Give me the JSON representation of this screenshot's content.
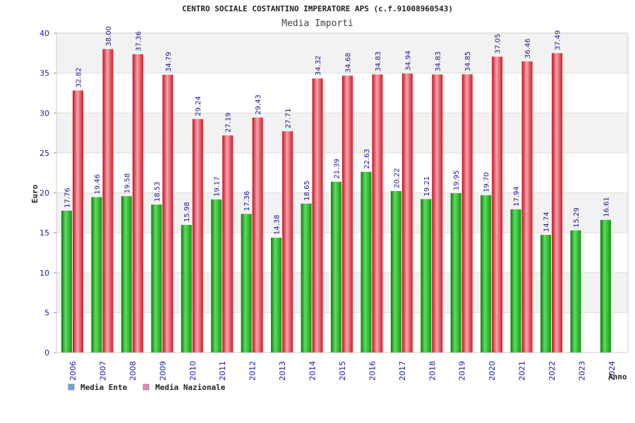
{
  "chart_data": {
    "type": "bar",
    "title": "CENTRO SOCIALE COSTANTINO IMPERATORE APS (c.f.91008960543)",
    "subtitle": "Media Importi",
    "xlabel": "Anno",
    "ylabel": "Euro",
    "ylim": [
      0,
      40
    ],
    "yticks": [
      0,
      5,
      10,
      15,
      20,
      25,
      30,
      35,
      40
    ],
    "grid": true,
    "legend_position": "bottom-left",
    "categories": [
      "2006",
      "2007",
      "2008",
      "2009",
      "2010",
      "2011",
      "2012",
      "2013",
      "2014",
      "2015",
      "2016",
      "2017",
      "2018",
      "2019",
      "2020",
      "2021",
      "2022",
      "2023",
      "2024"
    ],
    "series": [
      {
        "name": "Media Ente",
        "color": "#1faa1f",
        "legend_color": "#6aa6e8",
        "values": [
          17.76,
          19.46,
          19.58,
          18.53,
          15.98,
          19.17,
          17.36,
          14.38,
          18.65,
          21.39,
          22.63,
          20.22,
          19.21,
          19.95,
          19.7,
          17.94,
          14.74,
          15.29,
          16.61
        ],
        "labels": [
          "17.76",
          "19.46",
          "19.58",
          "18.53",
          "15.98",
          "19.17",
          "17.36",
          "14.38",
          "18.65",
          "21.39",
          "22.63",
          "20.22",
          "19.21",
          "19.95",
          "19.70",
          "17.94",
          "14.74",
          "15.29",
          "16.61"
        ]
      },
      {
        "name": "Media Nazionale",
        "color": "#e8202a",
        "legend_color": "#e88ab8",
        "values": [
          32.82,
          38.0,
          37.36,
          34.79,
          29.24,
          27.19,
          29.43,
          27.71,
          34.32,
          34.68,
          34.83,
          34.94,
          34.83,
          34.85,
          37.05,
          36.46,
          37.49,
          null,
          null
        ],
        "labels": [
          "32.82",
          "38.00",
          "37.36",
          "34.79",
          "29.24",
          "27.19",
          "29.43",
          "27.71",
          "34.32",
          "34.68",
          "34.83",
          "34.94",
          "34.83",
          "34.85",
          "37.05",
          "36.46",
          "37.49",
          "",
          ""
        ]
      }
    ]
  }
}
